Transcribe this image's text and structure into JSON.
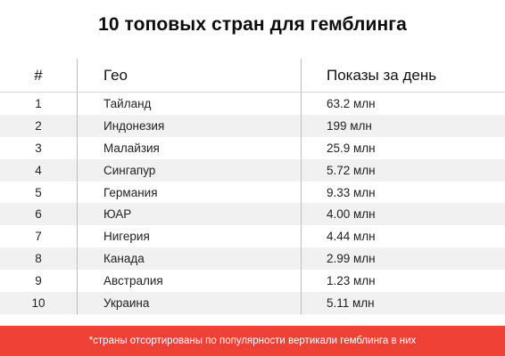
{
  "title": "10 топовых стран для гемблинга",
  "table": {
    "headers": {
      "num": "#",
      "geo": "Гео",
      "views": "Показы за день"
    },
    "rows": [
      {
        "num": "1",
        "geo": "Тайланд",
        "views": "63.2 млн"
      },
      {
        "num": "2",
        "geo": "Индонезия",
        "views": "199 млн"
      },
      {
        "num": "3",
        "geo": "Малайзия",
        "views": "25.9 млн"
      },
      {
        "num": "4",
        "geo": "Сингапур",
        "views": "5.72 млн"
      },
      {
        "num": "5",
        "geo": "Германия",
        "views": "9.33 млн"
      },
      {
        "num": "6",
        "geo": "ЮАР",
        "views": "4.00 млн"
      },
      {
        "num": "7",
        "geo": "Нигерия",
        "views": "4.44 млн"
      },
      {
        "num": "8",
        "geo": "Канада",
        "views": "2.99 млн"
      },
      {
        "num": "9",
        "geo": "Австралия",
        "views": "1.23 млн"
      },
      {
        "num": "10",
        "geo": "Украина",
        "views": "5.11 млн"
      }
    ]
  },
  "footer": {
    "note": "*страны отсортированы по популярности вертикали гемблинга в них"
  },
  "colors": {
    "accent": "#ef4136",
    "row_stripe": "#f1f1f1",
    "divider": "#bdbdbd"
  }
}
